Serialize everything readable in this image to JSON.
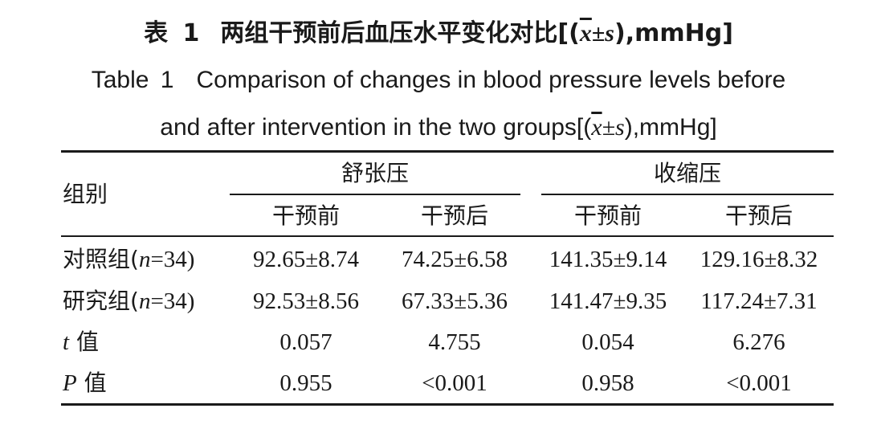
{
  "title_cn": {
    "label": "表",
    "number": "1",
    "text": "两组干预前后血压水平变化对比[(",
    "xbar": "x",
    "pm_s": "±s",
    "unit": "),mmHg]"
  },
  "title_en": {
    "line1_label": "Table",
    "line1_number": "1",
    "line1_text": "Comparison of changes in blood pressure levels before",
    "line2_text": "and after intervention in the two groups[(",
    "xbar": "x",
    "pm_s": "±s",
    "unit": "),mmHg]"
  },
  "table": {
    "group_header": "组别",
    "col_groups": [
      "舒张压",
      "收缩压"
    ],
    "sub_headers": [
      "干预前",
      "干预后",
      "干预前",
      "干预后"
    ],
    "rows": [
      {
        "label_cn": "对照组(",
        "label_var": "n",
        "label_rest": "=34)",
        "values": [
          "92.65±8.74",
          "74.25±6.58",
          "141.35±9.14",
          "129.16±8.32"
        ]
      },
      {
        "label_cn": "研究组(",
        "label_var": "n",
        "label_rest": "=34)",
        "values": [
          "92.53±8.56",
          "67.33±5.36",
          "141.47±9.35",
          "117.24±7.31"
        ]
      },
      {
        "label_cn": "",
        "label_var": "t",
        "label_rest": " 值",
        "values": [
          "0.057",
          "4.755",
          "0.054",
          "6.276"
        ]
      },
      {
        "label_cn": "",
        "label_var": "P",
        "label_rest": " 值",
        "values": [
          "0.955",
          "<0.001",
          "0.958",
          "<0.001"
        ]
      }
    ]
  }
}
